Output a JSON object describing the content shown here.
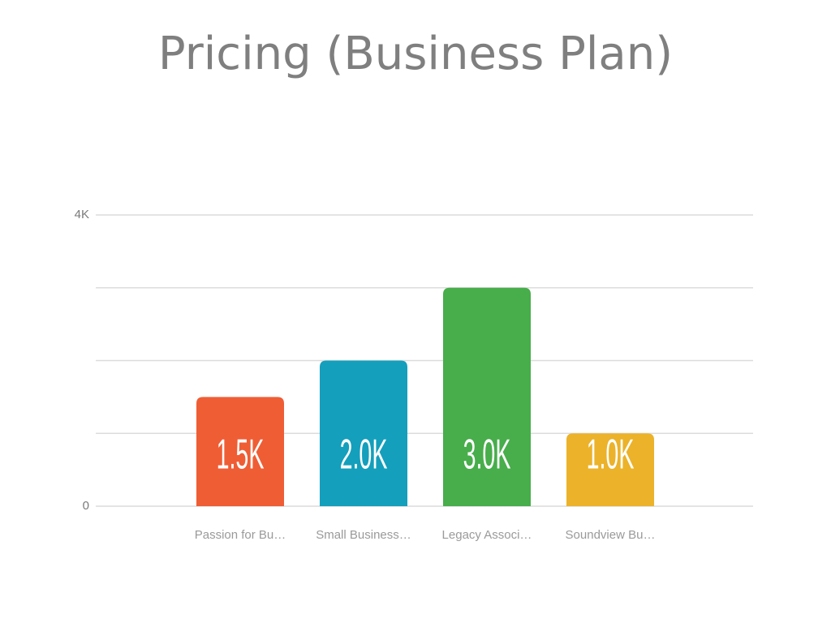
{
  "chart_data": {
    "type": "bar",
    "title": "Pricing (Business Plan)",
    "categories": [
      "Passion for Bu…",
      "Small Business…",
      "Legacy Associ…",
      "Soundview Bu…"
    ],
    "values": [
      1500,
      2000,
      3000,
      1000
    ],
    "value_labels": [
      "1.5K",
      "2.0K",
      "3.0K",
      "1.0K"
    ],
    "colors": [
      "#ef5d35",
      "#149fbc",
      "#48ad4b",
      "#ebb22a"
    ],
    "ylim": [
      0,
      4000
    ],
    "yticks": [
      0,
      {
        "value": 1000,
        "label": null
      },
      {
        "value": 2000,
        "label": null
      },
      {
        "value": 3000,
        "label": null
      },
      {
        "value": 4000,
        "label": "4K"
      }
    ],
    "grid": true
  }
}
